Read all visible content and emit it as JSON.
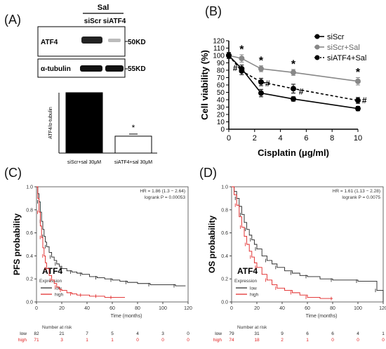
{
  "panels": {
    "a": "(A)",
    "b": "(B)",
    "c": "(C)",
    "d": "(D)"
  },
  "blot": {
    "treatment": "Sal",
    "lanes": [
      "siScr",
      "siATF4"
    ],
    "rows": [
      {
        "protein": "ATF4",
        "size": "50KD"
      },
      {
        "protein": "α-tubulin",
        "size": "55KD"
      }
    ]
  },
  "chart_data": [
    {
      "type": "bar",
      "panel": "A",
      "ylabel": "ATF4/α-tubulin",
      "categories": [
        "siScr+sal 30μM",
        "siATF4+sal 30μM"
      ],
      "values": [
        1.0,
        0.28
      ],
      "ylim": [
        0,
        1.0
      ],
      "colors": [
        "#000000",
        "#ffffff"
      ],
      "annotations": [
        {
          "category": "siATF4+sal 30μM",
          "text": "*"
        }
      ]
    },
    {
      "type": "line",
      "panel": "B",
      "xlabel": "Cisplatin (μg/ml)",
      "ylabel": "Cell viability (%)",
      "x": [
        0,
        1,
        2.5,
        5,
        10
      ],
      "xlim": [
        0,
        10
      ],
      "ylim": [
        0,
        120
      ],
      "xticks": [
        0,
        2,
        4,
        6,
        8,
        10
      ],
      "yticks": [
        0,
        10,
        20,
        30,
        40,
        50,
        60,
        70,
        80,
        90,
        100,
        110,
        120
      ],
      "legend_position": "top-right",
      "series": [
        {
          "name": "siScr",
          "values": [
            100,
            82,
            49,
            41,
            28
          ],
          "errors": [
            4,
            5,
            5,
            3,
            3
          ],
          "color": "#000000",
          "dash": false
        },
        {
          "name": "siScr+Sal",
          "values": [
            100,
            96,
            82,
            77,
            65
          ],
          "errors": [
            4,
            5,
            4,
            4,
            5
          ],
          "color": "#888888",
          "dash": false
        },
        {
          "name": "siATF4+Sal",
          "values": [
            100,
            79,
            64,
            55,
            39
          ],
          "errors": [
            4,
            5,
            5,
            6,
            4
          ],
          "color": "#000000",
          "dash": true
        }
      ],
      "annotations": [
        {
          "x": 1,
          "y": 109,
          "text": "*"
        },
        {
          "x": 2.5,
          "y": 94,
          "text": "*"
        },
        {
          "x": 5,
          "y": 89,
          "text": "*"
        },
        {
          "x": 10,
          "y": 78,
          "text": "*"
        },
        {
          "x": 0.5,
          "y": 83,
          "text": "#"
        },
        {
          "x": 3.0,
          "y": 62,
          "text": "#"
        },
        {
          "x": 5.6,
          "y": 51,
          "text": "#"
        },
        {
          "x": 10.5,
          "y": 39,
          "text": "#"
        }
      ]
    },
    {
      "type": "line",
      "panel": "C",
      "ylabel": "PFS probability",
      "xlabel": "Time (months)",
      "gene": "ATF4",
      "hr_text": "HR = 1.86 (1.3 − 2.64)",
      "logrank_text": "logrank P = 0.00053",
      "xlim": [
        0,
        120
      ],
      "ylim": [
        0,
        1.0
      ],
      "xticks": [
        0,
        20,
        40,
        60,
        80,
        100,
        120
      ],
      "yticks": [
        "0.0",
        "0.2",
        "0.4",
        "0.6",
        "0.8",
        "1.0"
      ],
      "legend_title": "Expression",
      "series": [
        {
          "name": "low",
          "color": "#222222",
          "x": [
            0,
            1,
            2,
            3,
            4,
            5,
            6,
            7,
            8,
            10,
            12,
            14,
            16,
            18,
            20,
            24,
            28,
            32,
            36,
            42,
            48,
            54,
            60,
            66,
            72,
            80,
            90,
            100,
            110,
            118
          ],
          "y": [
            1.0,
            0.94,
            0.87,
            0.78,
            0.7,
            0.63,
            0.57,
            0.52,
            0.48,
            0.43,
            0.39,
            0.36,
            0.33,
            0.31,
            0.29,
            0.27,
            0.26,
            0.25,
            0.24,
            0.22,
            0.21,
            0.2,
            0.19,
            0.18,
            0.17,
            0.16,
            0.15,
            0.15,
            0.14,
            0.14
          ]
        },
        {
          "name": "high",
          "color": "#e02020",
          "x": [
            0,
            1,
            2,
            3,
            4,
            5,
            6,
            7,
            8,
            10,
            12,
            14,
            16,
            18,
            20,
            24,
            28,
            32,
            36,
            42,
            48,
            54,
            60,
            70
          ],
          "y": [
            1.0,
            0.9,
            0.78,
            0.66,
            0.56,
            0.47,
            0.4,
            0.34,
            0.29,
            0.23,
            0.19,
            0.16,
            0.13,
            0.11,
            0.1,
            0.08,
            0.07,
            0.06,
            0.06,
            0.05,
            0.05,
            0.04,
            0.04,
            0.04
          ]
        }
      ],
      "risk_table": {
        "title": "Number at risk",
        "times": [
          0,
          20,
          40,
          60,
          80,
          100,
          120
        ],
        "rows": [
          {
            "name": "low",
            "color": "#222222",
            "values": [
              "82",
              "21",
              "7",
              "5",
              "4",
              "3",
              "0"
            ]
          },
          {
            "name": "high",
            "color": "#e02020",
            "values": [
              "71",
              "3",
              "1",
              "1",
              "0",
              "0",
              "0"
            ]
          }
        ]
      }
    },
    {
      "type": "line",
      "panel": "D",
      "ylabel": "OS probability",
      "xlabel": "Time (months)",
      "gene": "ATF4",
      "hr_text": "HR = 1.61 (1.13 − 2.28)",
      "logrank_text": "logrank P = 0.0075",
      "xlim": [
        0,
        120
      ],
      "ylim": [
        0,
        1.0
      ],
      "xticks": [
        0,
        20,
        40,
        60,
        80,
        100,
        120
      ],
      "yticks": [
        "0.0",
        "0.2",
        "0.4",
        "0.6",
        "0.8",
        "1.0"
      ],
      "legend_title": "Expression",
      "series": [
        {
          "name": "low",
          "color": "#222222",
          "x": [
            0,
            2,
            4,
            6,
            8,
            10,
            12,
            14,
            16,
            18,
            20,
            24,
            28,
            32,
            36,
            42,
            48,
            54,
            60,
            70,
            80,
            90,
            100,
            110,
            115,
            120
          ],
          "y": [
            1.0,
            0.96,
            0.9,
            0.83,
            0.76,
            0.69,
            0.63,
            0.58,
            0.54,
            0.5,
            0.46,
            0.4,
            0.36,
            0.33,
            0.3,
            0.27,
            0.25,
            0.23,
            0.22,
            0.2,
            0.19,
            0.19,
            0.18,
            0.18,
            0.1,
            0.0
          ]
        },
        {
          "name": "high",
          "color": "#e02020",
          "x": [
            0,
            2,
            4,
            6,
            8,
            10,
            12,
            14,
            16,
            18,
            20,
            24,
            28,
            32,
            36,
            42,
            48,
            54,
            60,
            70,
            80
          ],
          "y": [
            1.0,
            0.93,
            0.84,
            0.74,
            0.65,
            0.57,
            0.5,
            0.44,
            0.39,
            0.34,
            0.3,
            0.24,
            0.19,
            0.15,
            0.12,
            0.1,
            0.08,
            0.06,
            0.04,
            0.03,
            0.03
          ]
        }
      ],
      "risk_table": {
        "title": "Number at risk",
        "times": [
          0,
          20,
          40,
          60,
          80,
          100,
          120
        ],
        "rows": [
          {
            "name": "low",
            "color": "#222222",
            "values": [
              "79",
              "31",
              "9",
              "6",
              "6",
              "4",
              "1"
            ]
          },
          {
            "name": "high",
            "color": "#e02020",
            "values": [
              "74",
              "18",
              "2",
              "1",
              "0",
              "0",
              "0"
            ]
          }
        ]
      }
    }
  ]
}
